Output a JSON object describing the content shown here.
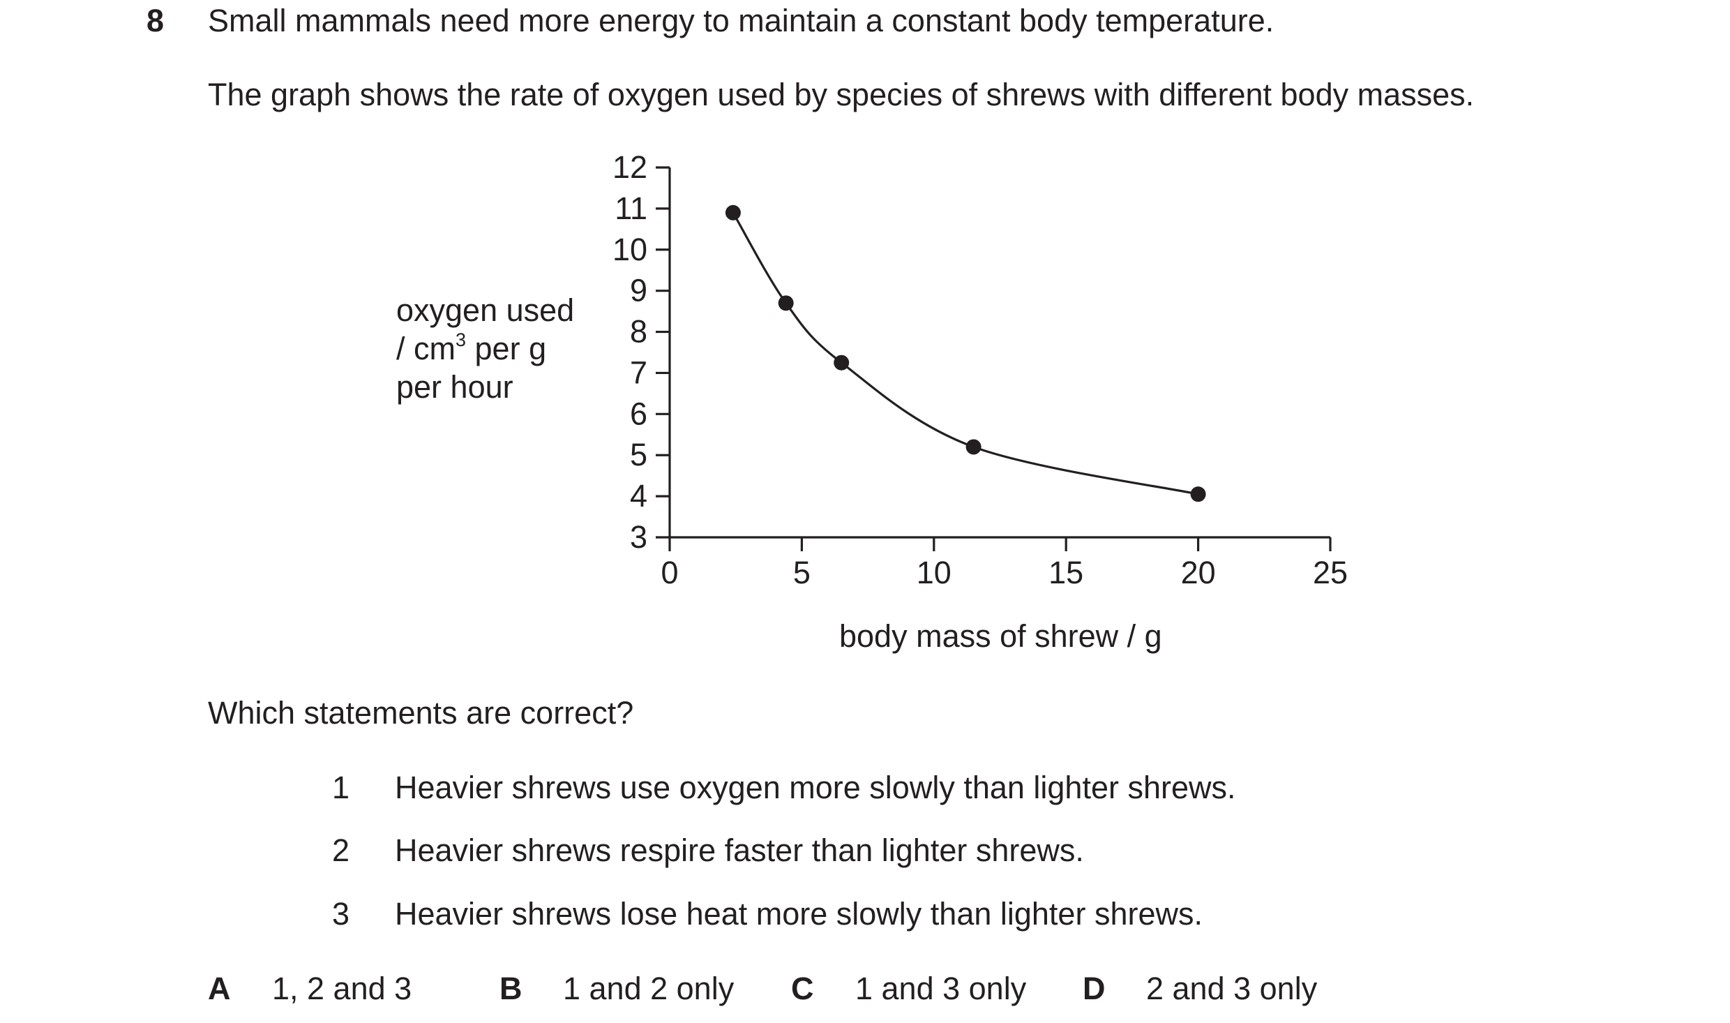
{
  "question": {
    "number": "8",
    "intro": "Small mammals need more energy to maintain a constant body temperature.",
    "graph_description": "The graph shows the rate of oxygen used by species of shrews with different body masses.",
    "prompt": "Which statements are correct?"
  },
  "statements": [
    {
      "num": "1",
      "text": "Heavier shrews use oxygen more slowly than lighter shrews."
    },
    {
      "num": "2",
      "text": "Heavier shrews respire faster than lighter shrews."
    },
    {
      "num": "3",
      "text": "Heavier shrews lose heat more slowly than lighter shrews."
    }
  ],
  "options": [
    {
      "letter": "A",
      "text": "1, 2 and 3"
    },
    {
      "letter": "B",
      "text": "1 and 2 only"
    },
    {
      "letter": "C",
      "text": "1 and 3 only"
    },
    {
      "letter": "D",
      "text": "2 and 3 only"
    }
  ],
  "chart_data": {
    "type": "line",
    "markers": true,
    "smooth": true,
    "x": [
      2.4,
      4.4,
      6.5,
      11.5,
      20
    ],
    "y": [
      10.9,
      8.7,
      7.25,
      5.2,
      4.05
    ],
    "xlabel": "body mass of shrew / g",
    "ylabel_lines": [
      "oxygen used",
      "/ cm",
      "3",
      " per g",
      "per hour"
    ],
    "xlim": [
      0,
      25
    ],
    "ylim": [
      3,
      12
    ],
    "xticks": [
      "0",
      "5",
      "10",
      "15",
      "20",
      "25"
    ],
    "yticks": [
      "3",
      "4",
      "5",
      "6",
      "7",
      "8",
      "9",
      "10",
      "11",
      "12"
    ],
    "grid": false,
    "legend": "none",
    "color": "#231f20"
  }
}
